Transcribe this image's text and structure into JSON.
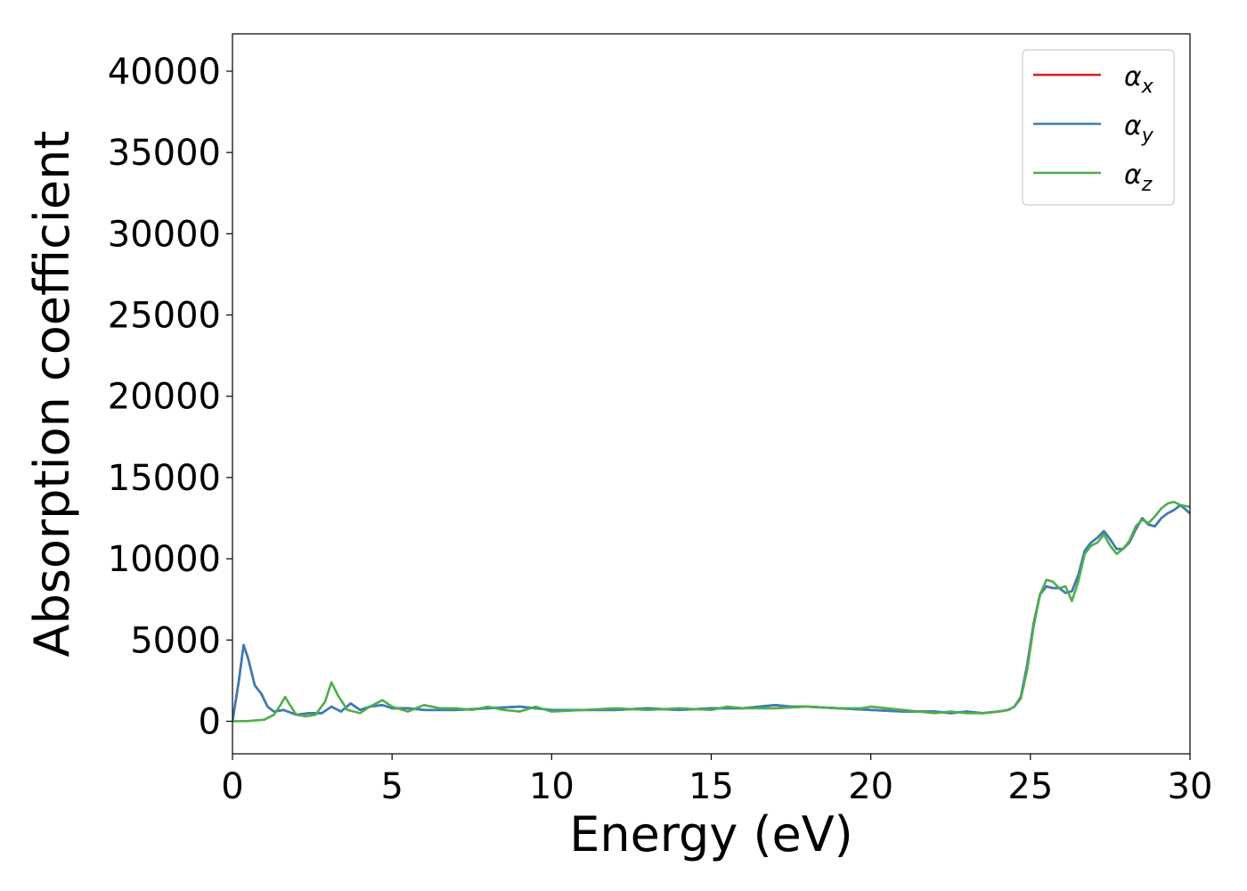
{
  "chart_data": {
    "type": "line",
    "title": "",
    "xlabel": "Energy (eV)",
    "ylabel": "Absorption coefficient",
    "xlim": [
      0,
      30
    ],
    "ylim": [
      -2000,
      42300
    ],
    "xticks": [
      0,
      5,
      10,
      15,
      20,
      25,
      30
    ],
    "yticks": [
      0,
      5000,
      10000,
      15000,
      20000,
      25000,
      30000,
      35000,
      40000
    ],
    "grid": false,
    "legend_position": "top-right",
    "series": [
      {
        "name": "αx",
        "legend_base": "α",
        "legend_sub": "x",
        "color": "#e41a1c",
        "x": [
          0,
          0.2,
          0.35,
          0.5,
          0.7,
          0.9,
          1.1,
          1.3,
          1.6,
          2.0,
          2.4,
          2.8,
          3.1,
          3.4,
          3.7,
          4.0,
          4.3,
          4.7,
          5.0,
          5.5,
          6.0,
          7.0,
          8.0,
          9.0,
          9.5,
          10.0,
          11.0,
          12.0,
          13.0,
          14.0,
          15.0,
          16.0,
          17.0,
          17.5,
          18.0,
          19.0,
          20.0,
          21.0,
          22.0,
          22.5,
          23.0,
          23.5,
          24.0,
          24.3,
          24.5,
          24.7,
          24.9,
          25.1,
          25.3,
          25.5,
          25.7,
          25.9,
          26.1,
          26.3,
          26.5,
          26.7,
          26.9,
          27.1,
          27.3,
          27.5,
          27.7,
          27.9,
          28.1,
          28.3,
          28.5,
          28.7,
          28.9,
          29.1,
          29.3,
          29.5,
          29.7,
          30.0
        ],
        "y": [
          0,
          2500,
          4700,
          3800,
          2200,
          1700,
          900,
          600,
          700,
          400,
          500,
          500,
          900,
          600,
          1100,
          700,
          900,
          1000,
          800,
          800,
          700,
          700,
          800,
          900,
          800,
          700,
          700,
          700,
          800,
          700,
          800,
          800,
          1000,
          900,
          900,
          800,
          700,
          600,
          600,
          500,
          600,
          500,
          600,
          700,
          900,
          1500,
          3500,
          6000,
          7800,
          8300,
          8200,
          8200,
          7900,
          8000,
          9000,
          10500,
          11000,
          11300,
          11700,
          11200,
          10600,
          10600,
          11000,
          11800,
          12500,
          12100,
          12000,
          12500,
          12800,
          13000,
          13300,
          12800
        ]
      },
      {
        "name": "αy",
        "legend_base": "α",
        "legend_sub": "y",
        "color": "#377eb8",
        "x": [
          0,
          0.2,
          0.35,
          0.5,
          0.7,
          0.9,
          1.1,
          1.3,
          1.6,
          2.0,
          2.4,
          2.8,
          3.1,
          3.4,
          3.7,
          4.0,
          4.3,
          4.7,
          5.0,
          5.5,
          6.0,
          7.0,
          8.0,
          9.0,
          9.5,
          10.0,
          11.0,
          12.0,
          13.0,
          14.0,
          15.0,
          16.0,
          17.0,
          17.5,
          18.0,
          19.0,
          20.0,
          21.0,
          22.0,
          22.5,
          23.0,
          23.5,
          24.0,
          24.3,
          24.5,
          24.7,
          24.9,
          25.1,
          25.3,
          25.5,
          25.7,
          25.9,
          26.1,
          26.3,
          26.5,
          26.7,
          26.9,
          27.1,
          27.3,
          27.5,
          27.7,
          27.9,
          28.1,
          28.3,
          28.5,
          28.7,
          28.9,
          29.1,
          29.3,
          29.5,
          29.7,
          30.0
        ],
        "y": [
          0,
          2500,
          4700,
          3800,
          2200,
          1700,
          900,
          600,
          700,
          400,
          500,
          500,
          900,
          600,
          1100,
          700,
          900,
          1000,
          800,
          800,
          700,
          700,
          800,
          900,
          800,
          700,
          700,
          700,
          800,
          700,
          800,
          800,
          1000,
          900,
          900,
          800,
          700,
          600,
          600,
          500,
          600,
          500,
          600,
          700,
          900,
          1500,
          3500,
          6000,
          7800,
          8300,
          8200,
          8200,
          7900,
          8000,
          9000,
          10500,
          11000,
          11300,
          11700,
          11200,
          10600,
          10600,
          11000,
          11800,
          12500,
          12100,
          12000,
          12500,
          12800,
          13000,
          13300,
          12800
        ]
      },
      {
        "name": "αz",
        "legend_base": "α",
        "legend_sub": "z",
        "color": "#4daf4a",
        "x": [
          0,
          0.5,
          1.0,
          1.3,
          1.5,
          1.65,
          1.8,
          2.0,
          2.3,
          2.6,
          2.9,
          3.1,
          3.3,
          3.6,
          4.0,
          4.3,
          4.7,
          5.0,
          5.5,
          6.0,
          6.5,
          7.0,
          7.5,
          8.0,
          8.5,
          9.0,
          9.5,
          10.0,
          11.0,
          12.0,
          13.0,
          14.0,
          15.0,
          15.5,
          16.0,
          17.0,
          18.0,
          19.0,
          19.7,
          20.0,
          21.0,
          22.0,
          22.5,
          23.0,
          23.5,
          24.0,
          24.3,
          24.5,
          24.7,
          24.9,
          25.1,
          25.3,
          25.5,
          25.7,
          25.9,
          26.1,
          26.3,
          26.5,
          26.7,
          26.9,
          27.1,
          27.3,
          27.5,
          27.7,
          27.9,
          28.1,
          28.3,
          28.5,
          28.7,
          28.9,
          29.1,
          29.3,
          29.5,
          29.7,
          30.0
        ],
        "y": [
          0,
          20,
          100,
          400,
          1000,
          1500,
          1000,
          400,
          300,
          400,
          1200,
          2400,
          1600,
          700,
          500,
          900,
          1300,
          900,
          600,
          1000,
          800,
          800,
          700,
          900,
          700,
          600,
          900,
          600,
          700,
          800,
          700,
          800,
          700,
          900,
          800,
          800,
          900,
          800,
          800,
          900,
          700,
          500,
          600,
          500,
          500,
          600,
          700,
          900,
          1400,
          3200,
          5800,
          7800,
          8700,
          8600,
          8200,
          8300,
          7400,
          8600,
          10300,
          10800,
          11000,
          11500,
          10800,
          10300,
          10600,
          11100,
          12000,
          12400,
          12200,
          12600,
          13100,
          13400,
          13500,
          13300,
          13200
        ]
      }
    ]
  }
}
